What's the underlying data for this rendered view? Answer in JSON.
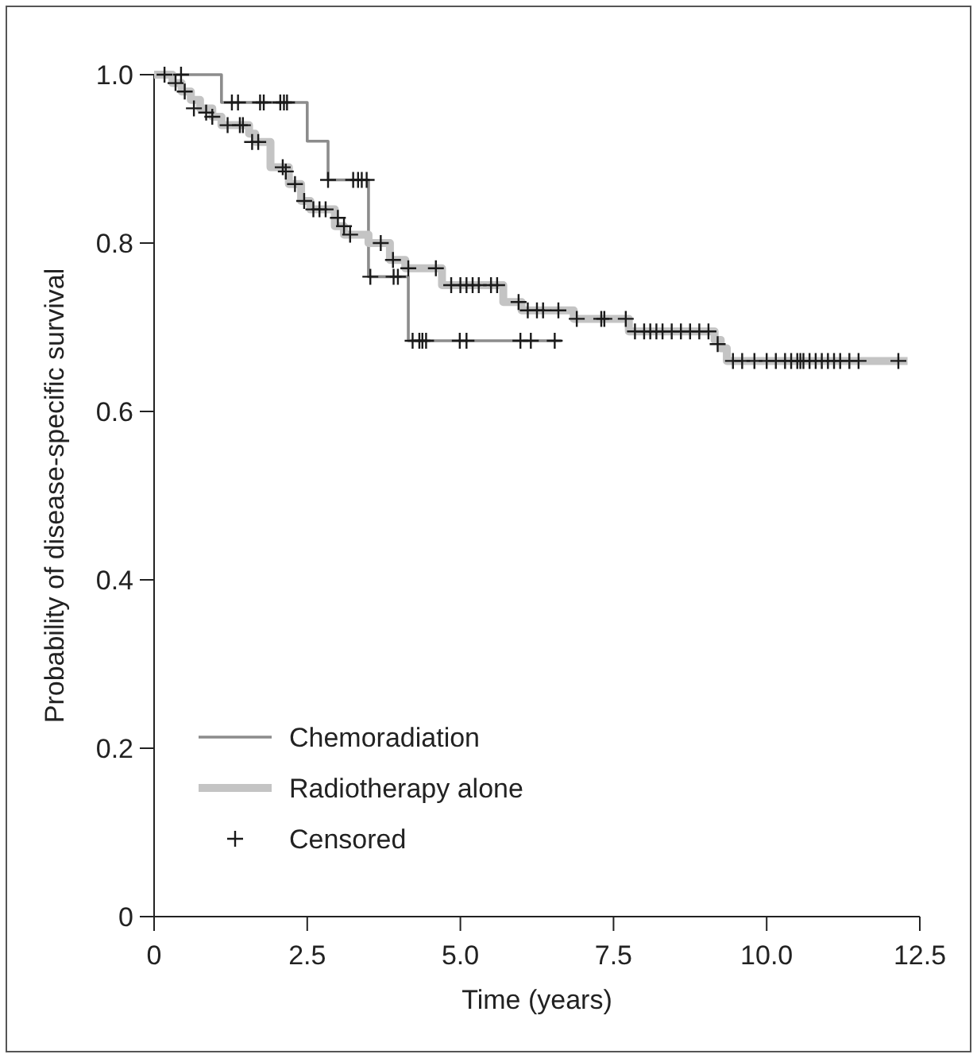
{
  "chart_data": {
    "type": "step",
    "xlabel": "Time (years)",
    "ylabel": "Probability of disease-specific survival",
    "xlim": [
      0,
      12.5
    ],
    "xticks": [
      0,
      {
        "value": 2.5,
        "label": "2.5"
      },
      {
        "value": 5,
        "label": "5.0"
      },
      {
        "value": 7.5,
        "label": "7.5"
      },
      {
        "value": 10,
        "label": "10.0"
      },
      {
        "value": 12.5,
        "label": "12.5"
      }
    ],
    "ylim": [
      0,
      1
    ],
    "yticks": [
      0,
      {
        "value": 0.2,
        "label": "0.2"
      },
      {
        "value": 0.4,
        "label": "0.4"
      },
      {
        "value": 0.6,
        "label": "0.6"
      },
      {
        "value": 0.8,
        "label": "0.8"
      },
      {
        "value": 1,
        "label": "1.0"
      }
    ],
    "grid": false,
    "legend": "bottom left",
    "series": [
      {
        "name": "Chemoradiation",
        "color": "#8c8c8c",
        "x": [
          0,
          1.1,
          2.5,
          2.84,
          3.5,
          4.15,
          6.65
        ],
        "values": [
          1,
          0.967,
          0.921,
          0.875,
          0.76,
          0.684,
          0.684
        ]
      },
      {
        "name": "Radiotherapy alone",
        "color": "#c4c4c4",
        "x": [
          0,
          0.3,
          0.45,
          0.6,
          0.75,
          0.95,
          1.1,
          1.55,
          1.65,
          1.9,
          2.2,
          2.4,
          2.55,
          2.95,
          3.1,
          3.5,
          3.85,
          4.1,
          4.7,
          5.7,
          6.0,
          6.85,
          7.75,
          9.15,
          9.25,
          9.35,
          12.3
        ],
        "values": [
          1,
          0.99,
          0.98,
          0.97,
          0.96,
          0.95,
          0.94,
          0.93,
          0.92,
          0.89,
          0.87,
          0.85,
          0.84,
          0.82,
          0.81,
          0.8,
          0.78,
          0.77,
          0.75,
          0.73,
          0.72,
          0.71,
          0.695,
          0.685,
          0.675,
          0.66,
          0.66
        ]
      },
      {
        "name": "Censored",
        "type": "scatter",
        "marker": "cross",
        "color": "#1a1a1a",
        "x": [
          1.27,
          1.37,
          1.73,
          1.79,
          2.06,
          2.12,
          2.17,
          2.84,
          3.25,
          3.33,
          3.39,
          3.47,
          3.53,
          3.91,
          3.98,
          4.22,
          4.33,
          4.38,
          4.44,
          4.99,
          5.1,
          5.98,
          6.15,
          6.54,
          0.17,
          0.44,
          0.35,
          0.5,
          0.65,
          0.85,
          0.95,
          1.2,
          1.4,
          1.45,
          1.6,
          1.7,
          2.1,
          2.15,
          2.3,
          2.45,
          2.6,
          2.7,
          2.8,
          3.0,
          3.1,
          3.2,
          3.7,
          3.9,
          4.15,
          4.6,
          4.85,
          5.0,
          5.1,
          5.2,
          5.3,
          5.5,
          5.6,
          5.95,
          6.1,
          6.25,
          6.35,
          6.6,
          6.9,
          7.3,
          7.35,
          7.7,
          7.85,
          8.0,
          8.1,
          8.2,
          8.3,
          8.45,
          8.6,
          8.75,
          8.9,
          9.05,
          9.2,
          9.45,
          9.6,
          9.8,
          10.0,
          10.15,
          10.3,
          10.4,
          10.5,
          10.55,
          10.6,
          10.7,
          10.8,
          10.9,
          11.0,
          11.1,
          11.2,
          11.35,
          11.5,
          12.15
        ],
        "values": [
          0.967,
          0.967,
          0.967,
          0.967,
          0.967,
          0.967,
          0.967,
          0.875,
          0.875,
          0.875,
          0.875,
          0.875,
          0.76,
          0.76,
          0.76,
          0.684,
          0.684,
          0.684,
          0.684,
          0.684,
          0.684,
          0.684,
          0.684,
          0.684,
          1,
          1,
          0.99,
          0.98,
          0.96,
          0.955,
          0.95,
          0.94,
          0.94,
          0.94,
          0.92,
          0.92,
          0.89,
          0.885,
          0.87,
          0.85,
          0.84,
          0.84,
          0.84,
          0.83,
          0.82,
          0.81,
          0.8,
          0.78,
          0.77,
          0.77,
          0.75,
          0.75,
          0.75,
          0.75,
          0.75,
          0.75,
          0.75,
          0.73,
          0.72,
          0.72,
          0.72,
          0.72,
          0.71,
          0.71,
          0.71,
          0.71,
          0.695,
          0.695,
          0.695,
          0.695,
          0.695,
          0.695,
          0.695,
          0.695,
          0.695,
          0.695,
          0.68,
          0.66,
          0.66,
          0.66,
          0.66,
          0.66,
          0.66,
          0.66,
          0.66,
          0.66,
          0.66,
          0.66,
          0.66,
          0.66,
          0.66,
          0.66,
          0.66,
          0.66,
          0.66,
          0.66
        ]
      }
    ]
  }
}
